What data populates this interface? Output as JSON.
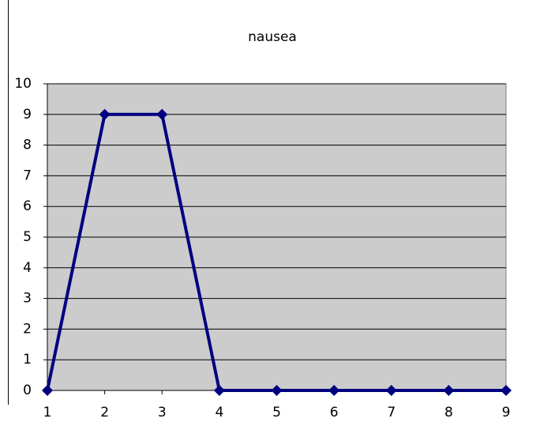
{
  "chart_data": {
    "type": "line",
    "title": "nausea",
    "x": [
      1,
      2,
      3,
      4,
      5,
      6,
      7,
      8,
      9
    ],
    "series": [
      {
        "name": "nausea",
        "color": "#000080",
        "values": [
          0,
          9,
          9,
          0,
          0,
          0,
          0,
          0,
          0
        ]
      }
    ],
    "xlim": [
      1,
      9
    ],
    "xticks": [
      1,
      2,
      3,
      4,
      5,
      6,
      7,
      8,
      9
    ],
    "ylim": [
      0,
      10
    ],
    "yticks": [
      0,
      1,
      2,
      3,
      4,
      5,
      6,
      7,
      8,
      9,
      10
    ],
    "grid": true,
    "plot_background": "#cccccc"
  }
}
